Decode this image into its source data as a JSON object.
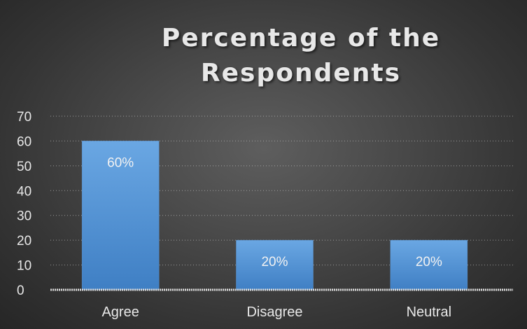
{
  "chart_data": {
    "type": "bar",
    "title": "Percentage of the Respondents",
    "categories": [
      "Agree",
      "Disagree",
      "Neutral"
    ],
    "values": [
      60,
      20,
      20
    ],
    "data_labels": [
      "60%",
      "20%",
      "20%"
    ],
    "ylim": [
      0,
      70
    ],
    "yticks": [
      0,
      10,
      20,
      30,
      40,
      50,
      60,
      70
    ],
    "ytick_labels": [
      "0",
      "10",
      "20",
      "30",
      "40",
      "50",
      "60",
      "70"
    ],
    "xlabel": "",
    "ylabel": "",
    "grid": true,
    "legend": "none"
  },
  "colors": {
    "bar_top": "#6aa7e3",
    "bar_bottom": "#3f7fc4",
    "text": "#e8e8e8",
    "grid": "#bfbfbf",
    "axis": "#d9d9d9"
  }
}
